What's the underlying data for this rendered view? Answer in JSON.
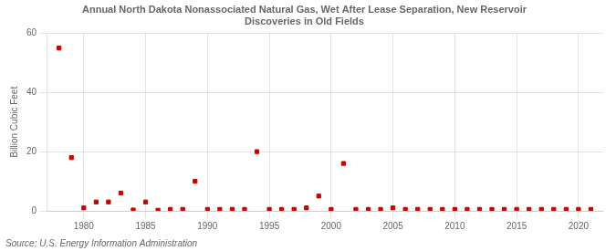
{
  "chart_data": {
    "type": "scatter",
    "title": "Annual North Dakota Nonassociated Natural Gas, Wet After Lease Separation, New Reservoir\nDiscoveries in Old Fields",
    "y_label": "Billion Cubic Feet",
    "annotations": [
      "Source: U.S. Energy Information Administration"
    ],
    "x": [
      1978,
      1979,
      1980,
      1981,
      1982,
      1983,
      1984,
      1985,
      1986,
      1987,
      1988,
      1989,
      1990,
      1991,
      1992,
      1993,
      1994,
      1995,
      1996,
      1997,
      1998,
      1999,
      2000,
      2001,
      2002,
      2003,
      2004,
      2005,
      2006,
      2007,
      2008,
      2009,
      2010,
      2011,
      2012,
      2013,
      2014,
      2015,
      2016,
      2017,
      2018,
      2019,
      2020,
      2021
    ],
    "values": [
      55,
      18,
      1,
      3,
      3,
      6,
      0.3,
      3,
      0.2,
      0.5,
      0.5,
      10,
      0.5,
      0.5,
      0.5,
      0.5,
      20,
      0.5,
      0.5,
      0.5,
      1,
      5,
      0.5,
      16,
      0.5,
      0.5,
      0.5,
      1,
      0.5,
      0.5,
      0.5,
      0.5,
      0.5,
      0.5,
      0.5,
      0.5,
      0.5,
      0.5,
      0.5,
      0.5,
      0.5,
      0.5,
      0.5,
      0.5
    ],
    "color": "#cc0000",
    "marker": "square",
    "xlim": [
      1977,
      2022
    ],
    "xticks": [
      1980,
      1985,
      1990,
      1995,
      2000,
      2005,
      2010,
      2015,
      2020
    ],
    "ylim": [
      0,
      60
    ],
    "yticks": [
      0,
      20,
      40,
      60
    ],
    "grid": true
  }
}
